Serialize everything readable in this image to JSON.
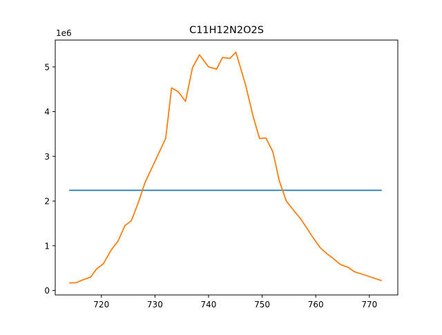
{
  "chart_data": {
    "type": "line",
    "title": "C11H12N2O2S",
    "xlabel": "",
    "ylabel": "",
    "y_scale_label": "1e6",
    "xlim": [
      711.4,
      775.3
    ],
    "ylim": [
      -100000.0,
      5600000.0
    ],
    "x_ticks": [
      720,
      730,
      740,
      750,
      760,
      770
    ],
    "y_ticks": [
      0,
      1000000,
      2000000,
      3000000,
      4000000,
      5000000
    ],
    "y_tick_labels": [
      "0",
      "1",
      "2",
      "3",
      "4",
      "5"
    ],
    "grid": false,
    "series": [
      {
        "color": "#1f77b4",
        "x": [
          714.0,
          772.3
        ],
        "y": [
          2240000,
          2240000
        ]
      },
      {
        "color": "#ff7f0e",
        "x": [
          714.0,
          715.2,
          716.4,
          718.0,
          719.1,
          720.4,
          721.8,
          723.1,
          724.4,
          725.6,
          727.0,
          728.1,
          732.0,
          733.1,
          734.3,
          735.7,
          737.0,
          738.3,
          740.0,
          741.5,
          742.6,
          744.0,
          745.1,
          746.9,
          748.3,
          749.5,
          750.7,
          752.0,
          753.2,
          754.5,
          755.8,
          757.2,
          758.3,
          759.5,
          760.8,
          762.0,
          763.4,
          764.6,
          766.0,
          767.2,
          768.5,
          769.8,
          771.0,
          772.3
        ],
        "y": [
          170000,
          170000,
          230000,
          300000,
          480000,
          600000,
          900000,
          1100000,
          1450000,
          1560000,
          2000000,
          2400000,
          3400000,
          4530000,
          4450000,
          4230000,
          4980000,
          5270000,
          5000000,
          4950000,
          5210000,
          5190000,
          5330000,
          4600000,
          3900000,
          3400000,
          3410000,
          3100000,
          2450000,
          2000000,
          1800000,
          1600000,
          1400000,
          1180000,
          960000,
          830000,
          700000,
          580000,
          520000,
          420000,
          370000,
          320000,
          270000,
          220000
        ]
      }
    ]
  }
}
